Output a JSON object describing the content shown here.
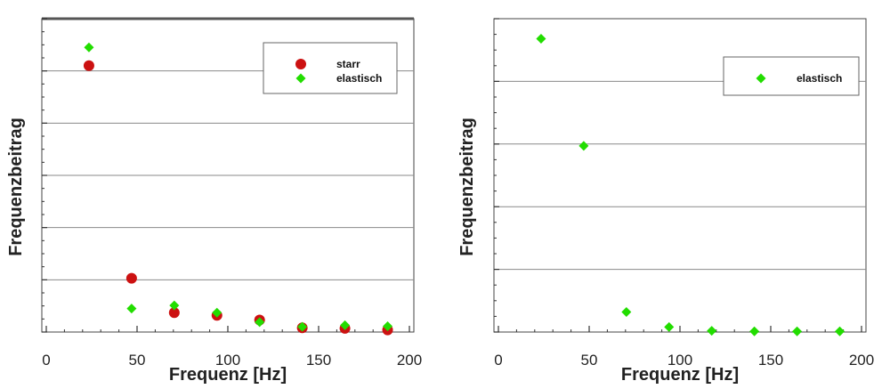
{
  "chart_data": [
    {
      "type": "scatter",
      "xlabel": "Frequenz [Hz]",
      "ylabel": "Frequenzbeitrag",
      "xlim": [
        0,
        200
      ],
      "ylim": [
        0,
        6
      ],
      "xticks": [
        "0",
        "50",
        "100",
        "150",
        "200"
      ],
      "y_tick_labels_shown": false,
      "grid": "horizontal",
      "legend_position": "top-right",
      "series": [
        {
          "name": "starr",
          "marker": "circle",
          "color": "#cc1111",
          "x": [
            23.5,
            47,
            70.5,
            94,
            117.5,
            141,
            164.5,
            188
          ],
          "y": [
            5.1,
            1.03,
            0.37,
            0.32,
            0.23,
            0.08,
            0.07,
            0.04
          ]
        },
        {
          "name": "elastisch",
          "marker": "diamond",
          "color": "#22dd00",
          "x": [
            23.5,
            47,
            70.5,
            94,
            117.5,
            141,
            164.5,
            188
          ],
          "y": [
            5.45,
            0.45,
            0.51,
            0.37,
            0.19,
            0.1,
            0.13,
            0.11
          ]
        }
      ]
    },
    {
      "type": "scatter",
      "xlabel": "Frequenz [Hz]",
      "ylabel": "Frequenzbeitrag",
      "xlim": [
        0,
        200
      ],
      "ylim": [
        0,
        5
      ],
      "xticks": [
        "0",
        "50",
        "100",
        "150",
        "200"
      ],
      "y_tick_labels_shown": false,
      "grid": "horizontal",
      "legend_position": "top-right",
      "series": [
        {
          "name": "elastisch",
          "marker": "diamond",
          "color": "#22dd00",
          "x": [
            23.5,
            47,
            70.5,
            94,
            117.5,
            141,
            164.5,
            188
          ],
          "y": [
            4.68,
            2.97,
            0.32,
            0.08,
            0.02,
            0.01,
            0.01,
            0.01
          ]
        }
      ]
    }
  ]
}
